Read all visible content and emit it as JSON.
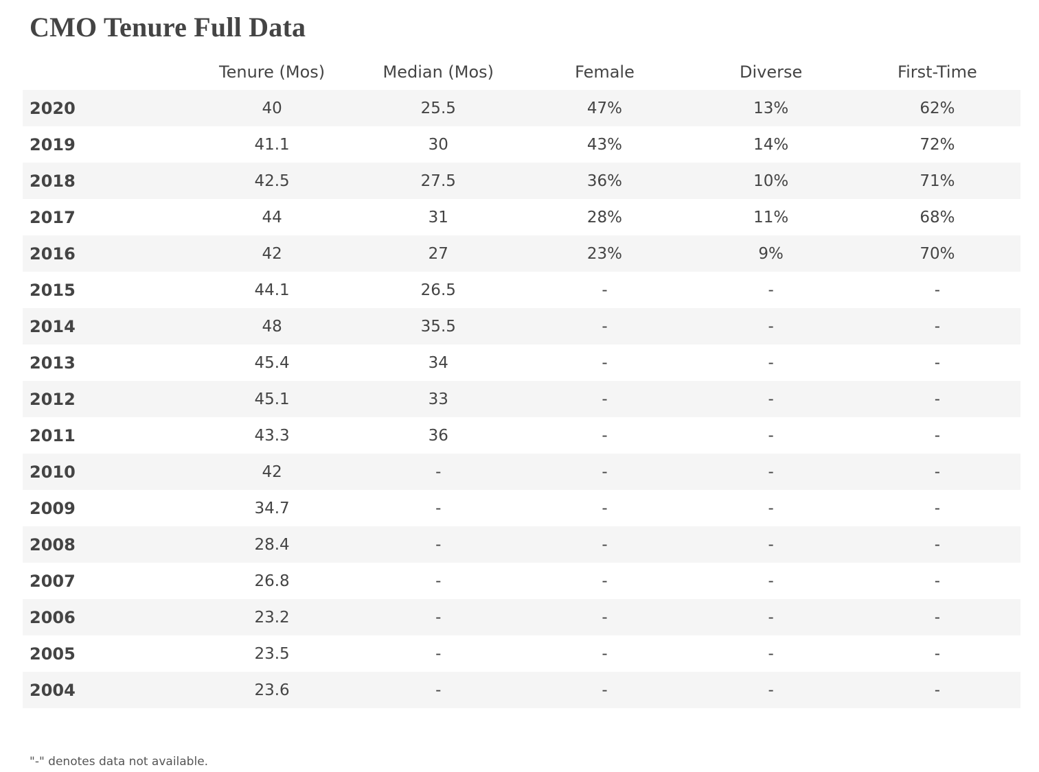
{
  "page": {
    "title": "CMO Tenure Full Data",
    "footnote": "\"-\" denotes data not available."
  },
  "table": {
    "headers": [
      "",
      "Tenure (Mos)",
      "Median (Mos)",
      "Female",
      "Diverse",
      "First-Time"
    ],
    "rows": [
      [
        "2020",
        "40",
        "25.5",
        "47%",
        "13%",
        "62%"
      ],
      [
        "2019",
        "41.1",
        "30",
        "43%",
        "14%",
        "72%"
      ],
      [
        "2018",
        "42.5",
        "27.5",
        "36%",
        "10%",
        "71%"
      ],
      [
        "2017",
        "44",
        "31",
        "28%",
        "11%",
        "68%"
      ],
      [
        "2016",
        "42",
        "27",
        "23%",
        "9%",
        "70%"
      ],
      [
        "2015",
        "44.1",
        "26.5",
        "-",
        "-",
        "-"
      ],
      [
        "2014",
        "48",
        "35.5",
        "-",
        "-",
        "-"
      ],
      [
        "2013",
        "45.4",
        "34",
        "-",
        "-",
        "-"
      ],
      [
        "2012",
        "45.1",
        "33",
        "-",
        "-",
        "-"
      ],
      [
        "2011",
        "43.3",
        "36",
        "-",
        "-",
        "-"
      ],
      [
        "2010",
        "42",
        "-",
        "-",
        "-",
        "-"
      ],
      [
        "2009",
        "34.7",
        "-",
        "-",
        "-",
        "-"
      ],
      [
        "2008",
        "28.4",
        "-",
        "-",
        "-",
        "-"
      ],
      [
        "2007",
        "26.8",
        "-",
        "-",
        "-",
        "-"
      ],
      [
        "2006",
        "23.2",
        "-",
        "-",
        "-",
        "-"
      ],
      [
        "2005",
        "23.5",
        "-",
        "-",
        "-",
        "-"
      ],
      [
        "2004",
        "23.6",
        "-",
        "-",
        "-",
        "-"
      ]
    ]
  },
  "colors": {
    "text": "#444444",
    "stripe": "#f5f5f5",
    "background": "#ffffff"
  }
}
